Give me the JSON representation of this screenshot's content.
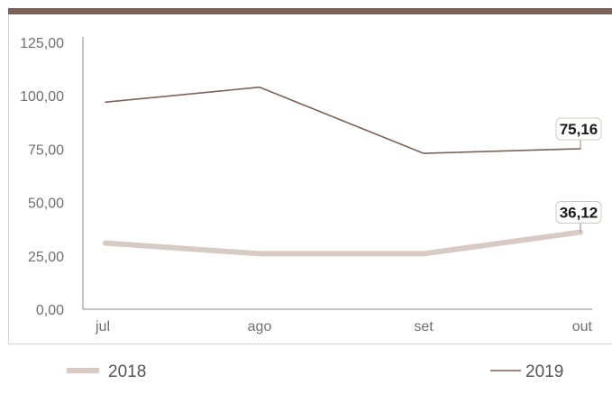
{
  "chart_data": {
    "type": "line",
    "categories": [
      "jul",
      "ago",
      "set",
      "out"
    ],
    "ylim": [
      0,
      125
    ],
    "yticks": [
      "0,00",
      "25,00",
      "50,00",
      "75,00",
      "100,00",
      "125,00"
    ],
    "ytick_values": [
      0,
      25,
      50,
      75,
      100,
      125
    ],
    "series": [
      {
        "name": "2018",
        "values": [
          31,
          26,
          26,
          36.12
        ],
        "color": "#d8cbc5",
        "end_label": "36,12"
      },
      {
        "name": "2019",
        "values": [
          97,
          104,
          73,
          75.16
        ],
        "color": "#7b6258",
        "end_label": "75,16"
      }
    ],
    "grid": false,
    "legend_position": "bottom"
  }
}
